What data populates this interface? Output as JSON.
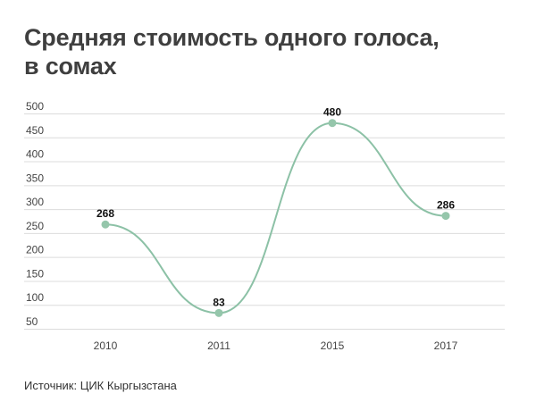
{
  "title_line1": "Средняя стоимость одного голоса,",
  "title_line2": "в сомах",
  "source": "Источник: ЦИК Кыргызстана",
  "colors": {
    "line": "#8cc1a6",
    "point": "#95c6ab",
    "grid": "#dcdcdc",
    "axis_text": "#444444",
    "label_text": "#111111"
  },
  "chart_data": {
    "type": "line",
    "title": "Средняя стоимость одного голоса, в сомах",
    "xlabel": "",
    "ylabel": "",
    "categories": [
      "2010",
      "2011",
      "2015",
      "2017"
    ],
    "series": [
      {
        "values": [
          268,
          83,
          480,
          286
        ]
      }
    ],
    "data_labels": [
      "268",
      "83",
      "480",
      "286"
    ],
    "y_ticks": [
      50,
      100,
      150,
      200,
      250,
      300,
      350,
      400,
      450,
      500
    ],
    "ylim": [
      50,
      500
    ],
    "grid": true,
    "smooth": true,
    "legend": "none"
  }
}
